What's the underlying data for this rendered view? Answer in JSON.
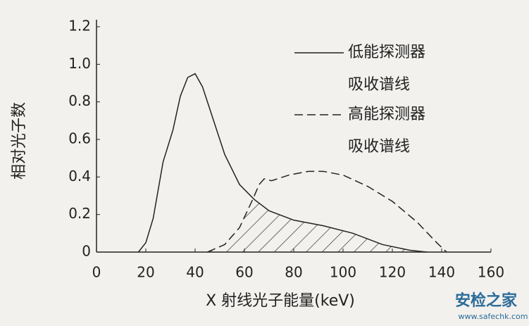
{
  "chart_data": {
    "type": "line",
    "xlabel": "X 射线光子能量(keV)",
    "ylabel": "相对光子数",
    "xlim": [
      0,
      160
    ],
    "xticks": [
      0,
      20,
      40,
      60,
      80,
      100,
      120,
      140,
      160
    ],
    "ylim": [
      0,
      1.2
    ],
    "yticks": [
      0,
      0.2,
      0.4,
      0.6,
      {
        "value": 0.8,
        "label": "0.8"
      },
      {
        "value": 1,
        "label": "1.0"
      },
      1.2
    ],
    "series": [
      {
        "name": "低能探测器吸收谱线",
        "color": "#222222",
        "line_style": "solid",
        "x": [
          17,
          20,
          23,
          27,
          31,
          34,
          37,
          40,
          43,
          47,
          52,
          58,
          64,
          70,
          80,
          92,
          104,
          116,
          127,
          134
        ],
        "values": [
          0,
          0.05,
          0.18,
          0.48,
          0.65,
          0.83,
          0.93,
          0.95,
          0.88,
          0.72,
          0.52,
          0.36,
          0.28,
          0.22,
          0.17,
          0.14,
          0.1,
          0.04,
          0.01,
          0
        ]
      },
      {
        "name": "高能探测器吸收谱线",
        "color": "#222222",
        "line_style": "dashed",
        "x": [
          45,
          52,
          58,
          63,
          66,
          68,
          71,
          78,
          86,
          92,
          100,
          110,
          120,
          130,
          138,
          142
        ],
        "values": [
          0,
          0.04,
          0.13,
          0.27,
          0.36,
          0.39,
          0.38,
          0.41,
          0.43,
          0.43,
          0.41,
          0.35,
          0.27,
          0.16,
          0.05,
          0
        ]
      }
    ],
    "hatch_overlap": true,
    "watermark": {
      "title": "安检之家",
      "url": "www.safechk.com"
    }
  }
}
